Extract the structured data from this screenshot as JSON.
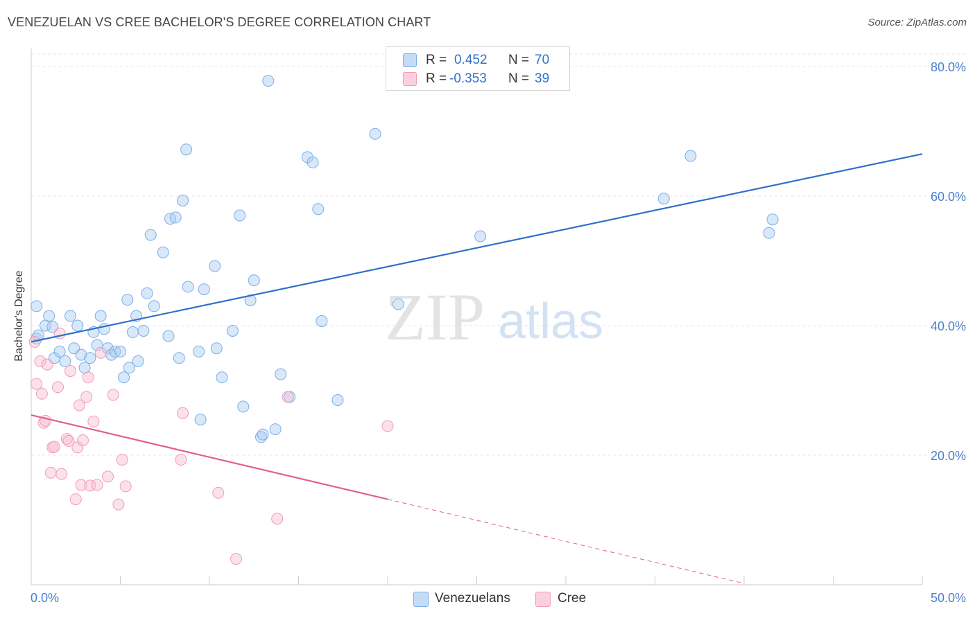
{
  "title": "VENEZUELAN VS CREE BACHELOR'S DEGREE CORRELATION CHART",
  "source": "Source: ZipAtlas.com",
  "watermark": {
    "zip": "ZIP",
    "atlas": "atlas"
  },
  "legend": {
    "rows": [
      {
        "r_label": "R =",
        "r_value": "0.452",
        "n_label": "N =",
        "n_value": "70"
      },
      {
        "r_label": "R =",
        "r_value": "-0.353",
        "n_label": "N =",
        "n_value": "39"
      }
    ]
  },
  "bottom_legend": {
    "venezuelans": "Venezuelans",
    "cree": "Cree"
  },
  "chart_data": {
    "type": "scatter",
    "title": "VENEZUELAN VS CREE BACHELOR'S DEGREE CORRELATION CHART",
    "xlabel": "",
    "ylabel": "Bachelor's Degree",
    "xlim": [
      0,
      50
    ],
    "ylim": [
      0,
      82
    ],
    "x_tick_labels": [
      "0.0%",
      "50.0%"
    ],
    "y_ticks": [
      20,
      40,
      60,
      80
    ],
    "y_tick_labels": [
      "20.0%",
      "40.0%",
      "60.0%",
      "80.0%"
    ],
    "grid": true,
    "colors": {
      "venezuelans": "#7aaee8",
      "cree": "#f29bb7",
      "blue_line": "#2f6fcc",
      "pink_line": "#e0608e"
    },
    "series": [
      {
        "name": "Venezuelans",
        "R": 0.452,
        "N": 70,
        "trend": {
          "x0": 0.0,
          "y0": 37.5,
          "x1": 50.0,
          "y1": 66.5
        },
        "points": [
          [
            0.3,
            38
          ],
          [
            0.4,
            38.5
          ],
          [
            0.3,
            43
          ],
          [
            0.8,
            40
          ],
          [
            1.0,
            41.5
          ],
          [
            1.2,
            39.8
          ],
          [
            1.3,
            35
          ],
          [
            1.6,
            36
          ],
          [
            1.9,
            34.5
          ],
          [
            2.2,
            41.5
          ],
          [
            2.4,
            36.5
          ],
          [
            2.6,
            40
          ],
          [
            2.8,
            35.5
          ],
          [
            3.0,
            33.5
          ],
          [
            3.3,
            35
          ],
          [
            3.5,
            39
          ],
          [
            3.7,
            37
          ],
          [
            3.9,
            41.5
          ],
          [
            4.1,
            39.5
          ],
          [
            4.3,
            36.5
          ],
          [
            4.5,
            35.5
          ],
          [
            4.7,
            36
          ],
          [
            5.0,
            36
          ],
          [
            5.2,
            32
          ],
          [
            5.4,
            44
          ],
          [
            5.5,
            33.5
          ],
          [
            5.7,
            39
          ],
          [
            5.9,
            41.5
          ],
          [
            6.0,
            34.5
          ],
          [
            6.3,
            39.2
          ],
          [
            6.5,
            45
          ],
          [
            6.7,
            54
          ],
          [
            6.9,
            43
          ],
          [
            7.4,
            51.3
          ],
          [
            7.7,
            38.4
          ],
          [
            7.8,
            56.5
          ],
          [
            8.1,
            56.7
          ],
          [
            8.3,
            35
          ],
          [
            8.5,
            59.3
          ],
          [
            8.7,
            67.2
          ],
          [
            8.8,
            46
          ],
          [
            9.4,
            36
          ],
          [
            9.5,
            25.5
          ],
          [
            9.7,
            45.6
          ],
          [
            10.3,
            49.2
          ],
          [
            10.4,
            36.5
          ],
          [
            10.7,
            32
          ],
          [
            11.3,
            39.2
          ],
          [
            11.7,
            57
          ],
          [
            11.9,
            27.5
          ],
          [
            12.3,
            43.9
          ],
          [
            12.5,
            47
          ],
          [
            12.9,
            22.8
          ],
          [
            13.0,
            23.2
          ],
          [
            13.3,
            77.8
          ],
          [
            13.7,
            24
          ],
          [
            14.0,
            32.5
          ],
          [
            14.5,
            29
          ],
          [
            15.5,
            66
          ],
          [
            15.8,
            65.2
          ],
          [
            16.1,
            58
          ],
          [
            16.3,
            40.7
          ],
          [
            17.2,
            28.5
          ],
          [
            19.3,
            69.6
          ],
          [
            20.6,
            43.3
          ],
          [
            25.2,
            53.8
          ],
          [
            35.5,
            59.6
          ],
          [
            37.0,
            66.2
          ],
          [
            41.4,
            54.3
          ],
          [
            41.6,
            56.4
          ]
        ]
      },
      {
        "name": "Cree",
        "R": -0.353,
        "N": 39,
        "trend": {
          "x0": 0.0,
          "y0": 26.2,
          "x1": 20.0,
          "y1": 13.2
        },
        "trend_dashed": {
          "x0": 20.0,
          "y0": 13.2,
          "x1": 40.0,
          "y1": 0.2
        },
        "points": [
          [
            0.2,
            37.5
          ],
          [
            0.3,
            31
          ],
          [
            0.5,
            34.5
          ],
          [
            0.6,
            29.5
          ],
          [
            0.7,
            25
          ],
          [
            0.8,
            25.3
          ],
          [
            0.9,
            34
          ],
          [
            1.1,
            17.3
          ],
          [
            1.2,
            21.2
          ],
          [
            1.3,
            21.3
          ],
          [
            1.5,
            30.5
          ],
          [
            1.6,
            38.8
          ],
          [
            1.7,
            17.1
          ],
          [
            2.0,
            22.5
          ],
          [
            2.1,
            22.2
          ],
          [
            2.2,
            33
          ],
          [
            2.5,
            13.2
          ],
          [
            2.6,
            21.2
          ],
          [
            2.7,
            27.7
          ],
          [
            2.8,
            15.4
          ],
          [
            2.9,
            22.3
          ],
          [
            3.1,
            29
          ],
          [
            3.2,
            32
          ],
          [
            3.3,
            15.3
          ],
          [
            3.5,
            25.2
          ],
          [
            3.7,
            15.4
          ],
          [
            3.9,
            35.8
          ],
          [
            4.3,
            16.7
          ],
          [
            4.6,
            29.3
          ],
          [
            4.9,
            12.4
          ],
          [
            5.1,
            19.3
          ],
          [
            5.3,
            15.2
          ],
          [
            8.4,
            19.3
          ],
          [
            8.5,
            26.5
          ],
          [
            10.5,
            14.2
          ],
          [
            11.5,
            4
          ],
          [
            13.8,
            10.2
          ],
          [
            14.4,
            29
          ],
          [
            20.0,
            24.5
          ]
        ]
      }
    ]
  }
}
